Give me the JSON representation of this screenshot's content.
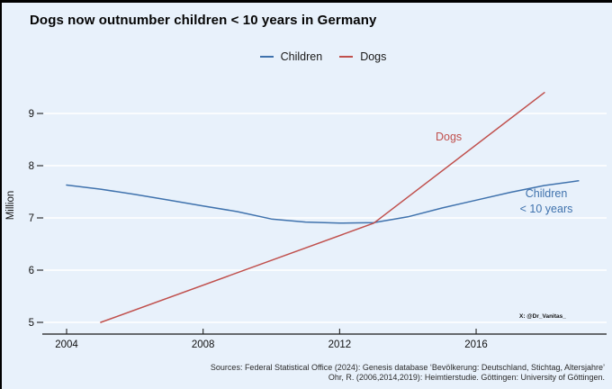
{
  "header": {
    "title": "Dogs now outnumber children < 10 years in Germany"
  },
  "legend": {
    "items": [
      {
        "label": "Children",
        "color": "#3f72ad"
      },
      {
        "label": "Dogs",
        "color": "#c0504d"
      }
    ]
  },
  "chart_data": {
    "type": "line",
    "title": "Dogs now outnumber children < 10 years in Germany",
    "xlabel": "",
    "ylabel": "Million",
    "x_ticks": [
      2004,
      2008,
      2012,
      2016
    ],
    "y_ticks": [
      5,
      6,
      7,
      8,
      9
    ],
    "xlim": [
      2003.3,
      2019.8
    ],
    "ylim": [
      4.78,
      9.57
    ],
    "grid": "horizontal white gridlines",
    "legend_position": "top-center",
    "series": [
      {
        "name": "Children",
        "color": "#3f72ad",
        "x": [
          2004,
          2005,
          2006,
          2007,
          2008,
          2009,
          2010,
          2011,
          2012,
          2013,
          2014,
          2015,
          2016,
          2017,
          2018,
          2019
        ],
        "y": [
          7.63,
          7.55,
          7.45,
          7.34,
          7.23,
          7.12,
          6.98,
          6.92,
          6.9,
          6.91,
          7.02,
          7.19,
          7.34,
          7.49,
          7.62,
          7.71
        ]
      },
      {
        "name": "Dogs",
        "color": "#c0504d",
        "x": [
          2005,
          2013,
          2018
        ],
        "y": [
          5.0,
          6.9,
          9.4
        ]
      }
    ],
    "annotations": [
      {
        "text": "Dogs",
        "color": "#c0504d",
        "near": "x=2015, y=8.5"
      },
      {
        "text": "Children\n< 10 years",
        "color": "#3f72ad",
        "near": "x=2018, y=7.3"
      }
    ]
  },
  "plot_labels": {
    "dogs": "Dogs",
    "children": "Children\n< 10 years"
  },
  "watermark": "X: @Dr_Vanitas_",
  "footer": {
    "sources_line1": "Sources: Federal Statistical Office (2024): Genesis database ‘Bevölkerung: Deutschland, Stichtag, Altersjahre’",
    "sources_line2": "Ohr, R. (2006,2014,2019): Heimtierstudie. Göttingen: University of Göttingen."
  }
}
